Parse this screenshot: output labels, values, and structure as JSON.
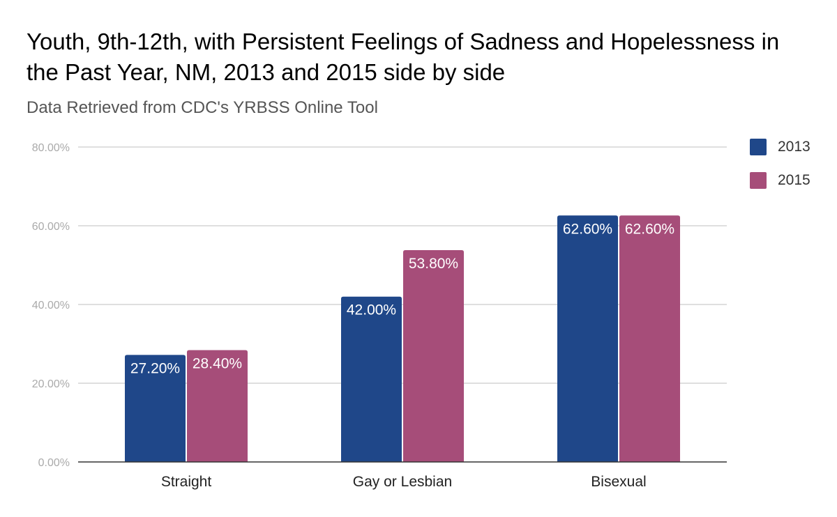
{
  "chart_data": {
    "type": "bar",
    "title": "Youth, 9th-12th, with Persistent Feelings of Sadness and Hopelessness in the Past Year, NM, 2013 and 2015 side by side",
    "subtitle": "Data Retrieved from CDC's YRBSS Online Tool",
    "xlabel": "",
    "ylabel": "",
    "categories": [
      "Straight",
      "Gay or Lesbian",
      "Bisexual"
    ],
    "series": [
      {
        "name": "2013",
        "color": "#1f4789",
        "values": [
          27.2,
          42.0,
          62.6
        ],
        "labels": [
          "27.20%",
          "42.00%",
          "62.60%"
        ]
      },
      {
        "name": "2015",
        "color": "#a64d79",
        "values": [
          28.4,
          53.8,
          62.6
        ],
        "labels": [
          "28.40%",
          "53.80%",
          "62.60%"
        ]
      }
    ],
    "ylim": [
      0,
      80
    ],
    "yticks": [
      0,
      20,
      40,
      60,
      80
    ],
    "ytick_labels": [
      "0.00%",
      "20.00%",
      "40.00%",
      "60.00%",
      "80.00%"
    ],
    "grid": true,
    "legend_position": "right"
  }
}
